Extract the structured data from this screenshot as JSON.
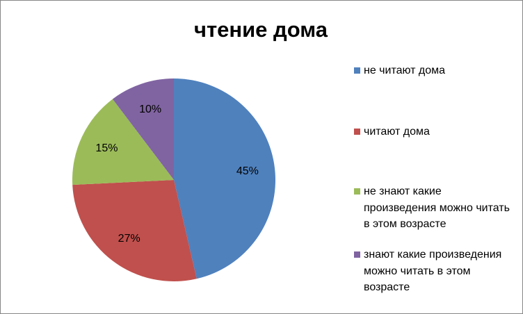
{
  "chart_data": {
    "type": "pie",
    "title": "чтение дома",
    "categories": [
      "не читают дома",
      "читают дома",
      "не знают какие произведения можно читать в этом возрасте",
      "знают какие произведения можно читать в этом возрасте"
    ],
    "values": [
      45,
      27,
      15,
      10
    ],
    "value_labels": [
      "45%",
      "27%",
      "15%",
      "10%"
    ],
    "colors": [
      "#4f81bd",
      "#c0504d",
      "#9bbb59",
      "#8064a2"
    ],
    "legend": "right"
  }
}
